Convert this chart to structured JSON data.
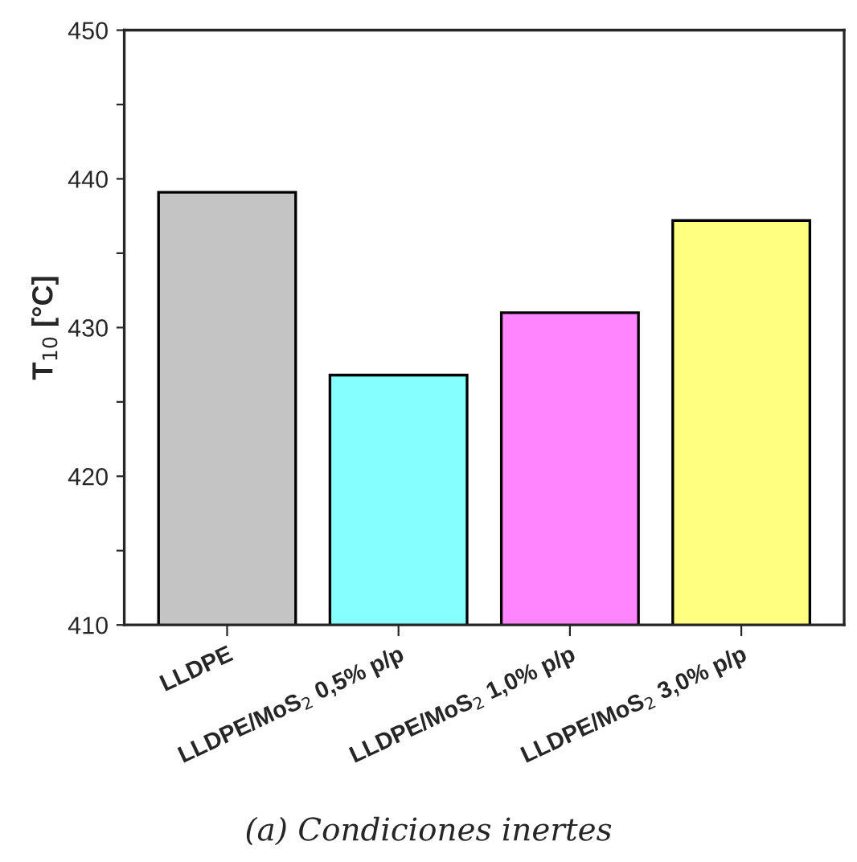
{
  "chart_data": {
    "type": "bar",
    "ylabel": "T$_{10}$ [°C]",
    "categories": [
      "LLDPE",
      "LLDPE/MoS$_{2}$ 0,5% p/p",
      "LLDPE/MoS$_{2}$ 1,0% p/p",
      "LLDPE/MoS$_{2}$ 3,0% p/p"
    ],
    "values": [
      439.1,
      426.8,
      431.0,
      437.2
    ],
    "colors": [
      "#c4c4c4",
      "#85ffff",
      "#ff85ff",
      "#ffff80"
    ],
    "ylim": [
      410,
      450
    ],
    "yticks": [
      410,
      {
        "value": 415,
        "label": null
      },
      420,
      {
        "value": 425,
        "label": null
      },
      430,
      {
        "value": 435,
        "label": null
      },
      440,
      {
        "value": 445,
        "label": null
      },
      450
    ],
    "grid": false,
    "legend": false,
    "annotations": [
      "(a) Condiciones inertes"
    ]
  }
}
